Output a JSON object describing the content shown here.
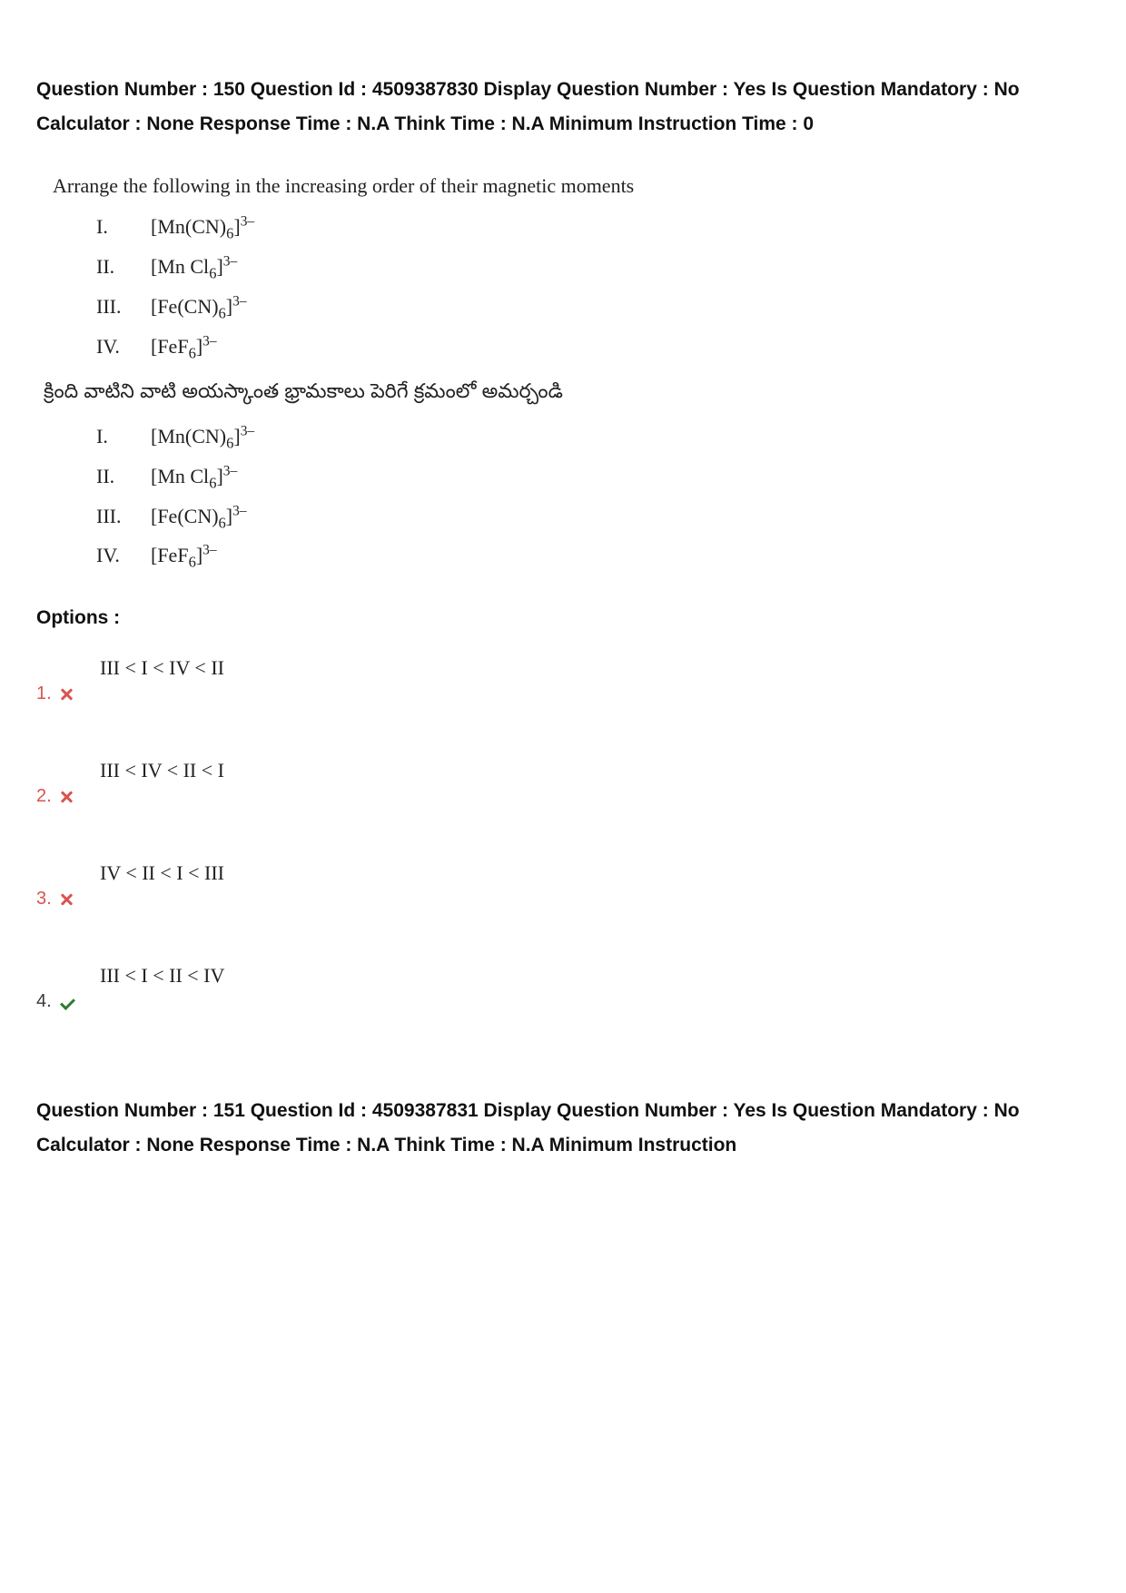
{
  "colors": {
    "text": "#222222",
    "heading": "#111111",
    "wrong": "#d9534f",
    "correct": "#2e7d32",
    "background": "#ffffff"
  },
  "meta1": {
    "text": "Question Number : 150 Question Id : 4509387830 Display Question Number : Yes Is Question Mandatory : No Calculator : None Response Time : N.A Think Time : N.A Minimum Instruction Time : 0"
  },
  "question": {
    "intro_en": "Arrange the following in the increasing order of their magnetic moments",
    "intro_te": "క్రింది వాటిని వాటి అయస్కాంత భ్రామకాలు పెరిగే క్రమంలో అమర్చండి",
    "items": [
      {
        "num": "I.",
        "pre": "[Mn(CN)",
        "sub": "6",
        "post": "]",
        "sup": "3–"
      },
      {
        "num": "II.",
        "pre": "[Mn Cl",
        "sub": "6",
        "post": "]",
        "sup": "3–"
      },
      {
        "num": "III.",
        "pre": "[Fe(CN)",
        "sub": "6",
        "post": "]",
        "sup": "3–"
      },
      {
        "num": "IV.",
        "pre": "[FeF",
        "sub": "6",
        "post": "]",
        "sup": "3–"
      }
    ]
  },
  "options_label": "Options :",
  "options": [
    {
      "n": "1.",
      "text": "III < I < IV < II",
      "correct": false
    },
    {
      "n": "2.",
      "text": "III < IV < II < I",
      "correct": false
    },
    {
      "n": "3.",
      "text": "IV < II < I < III",
      "correct": false
    },
    {
      "n": "4.",
      "text": "III < I < II < IV",
      "correct": true
    }
  ],
  "meta2": {
    "text": "Question Number : 151 Question Id : 4509387831 Display Question Number : Yes Is Question Mandatory : No Calculator : None Response Time : N.A Think Time : N.A Minimum Instruction"
  }
}
